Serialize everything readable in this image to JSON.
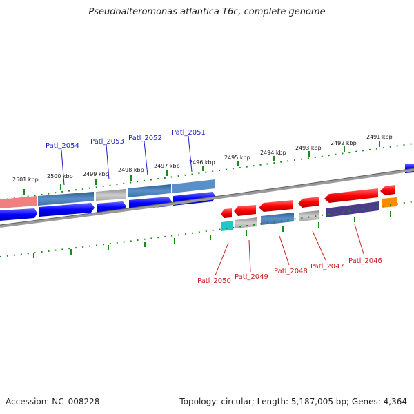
{
  "header": {
    "title": "Pseudoalteromonas atlantica T6c, complete genome"
  },
  "footer": {
    "accession": "Accession: NC_008228",
    "stats": "Topology: circular; Length: 5,187,005 bp; Genes: 4,364"
  },
  "ticks": [
    "2501 kbp",
    "2500 kbp",
    "2499 kbp",
    "2498 kbp",
    "2497 kbp",
    "2496 kbp",
    "2495 kbp",
    "2494 kbp",
    "2493 kbp",
    "2492 kbp",
    "2491 kbp"
  ],
  "labels_top": [
    "Patl_2054",
    "Patl_2053",
    "Patl_2052",
    "Patl_2051"
  ],
  "labels_bottom": [
    "Patl_2050",
    "Patl_2049",
    "Patl_2048",
    "Patl_2047",
    "Patl_2046"
  ],
  "colors": {
    "forward": "#0000ff",
    "reverse": "#ff0000",
    "steelblue": "#4a7fb5",
    "gray": "#b8b8b8",
    "salmon": "#f08080",
    "cyan": "#20c8c8",
    "purple": "#4b3c8a",
    "orange": "#ff8c00",
    "tick": "#1a8a1a",
    "backbone": "#8a8a8a",
    "label_blue": "#1d1dc8",
    "label_red": "#c81d1d"
  }
}
